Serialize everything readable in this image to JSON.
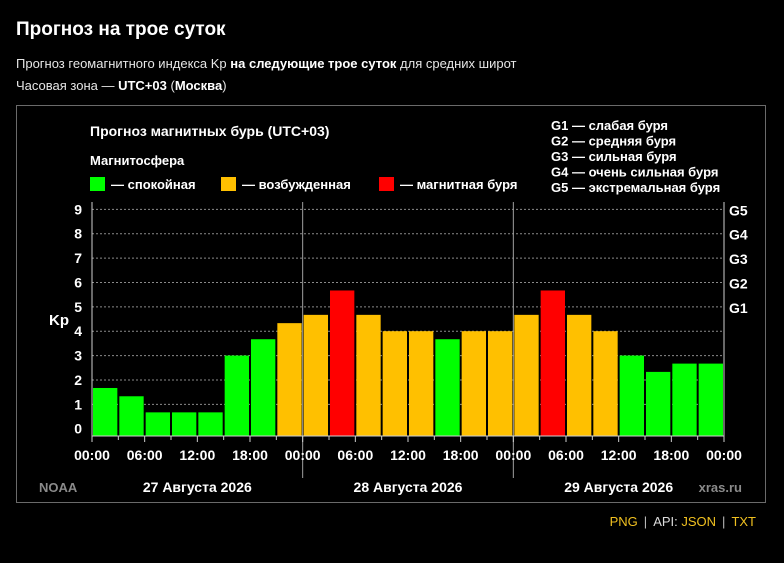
{
  "page": {
    "title": "Прогноз на трое суток",
    "subtitle_prefix": "Прогноз геомагнитного индекса Kp ",
    "subtitle_bold": "на следующие трое суток",
    "subtitle_suffix": " для средних широт",
    "timezone_prefix": "Часовая зона — ",
    "timezone_bold": "UTC+03",
    "timezone_open": " (",
    "timezone_city": "Москва",
    "timezone_close": ")"
  },
  "footer": {
    "png": "PNG",
    "sep1": "|",
    "api_prefix": "API: ",
    "json": "JSON",
    "sep2": "|",
    "txt": "TXT"
  },
  "chart_data": {
    "type": "bar",
    "title": "Прогноз магнитных бурь (UTC+03)",
    "legend_title": "Магнитосфера",
    "legend": [
      {
        "label": "— спокойная",
        "color": "#00ff00"
      },
      {
        "label": "— возбужденная",
        "color": "#ffc000"
      },
      {
        "label": "— магнитная буря",
        "color": "#ff0000"
      }
    ],
    "g_scale": [
      "G1 — слабая буря",
      "G2 — средняя буря",
      "G3 — сильная буря",
      "G4 — очень сильная буря",
      "G5 — экстремальная буря"
    ],
    "ylabel": "Kp",
    "ylim": [
      -0.3,
      9.3
    ],
    "yticks": [
      "0",
      "1",
      "2",
      "3",
      "4",
      "5",
      "6",
      "7",
      "8",
      "9"
    ],
    "right_ticks": [
      {
        "label": "G1",
        "value": 5
      },
      {
        "label": "G2",
        "value": 6
      },
      {
        "label": "G3",
        "value": 7
      },
      {
        "label": "G4",
        "value": 8
      },
      {
        "label": "G5",
        "value": 9
      }
    ],
    "x_tick_labels": [
      "00:00",
      "06:00",
      "12:00",
      "18:00",
      "00:00",
      "06:00",
      "12:00",
      "18:00",
      "00:00",
      "06:00",
      "12:00",
      "18:00",
      "00:00"
    ],
    "days": [
      "27 Августа 2026",
      "28 Августа 2026",
      "29 Августа 2026"
    ],
    "source_left": "NOAA",
    "source_right": "xras.ru",
    "values": [
      1.67,
      1.33,
      0.67,
      0.67,
      0.67,
      3.0,
      3.67,
      4.33,
      4.67,
      5.67,
      4.67,
      4.0,
      4.0,
      3.67,
      4.0,
      4.0,
      4.67,
      5.67,
      4.67,
      4.0,
      3.0,
      2.33,
      2.67,
      2.67
    ],
    "levels": [
      "quiet",
      "quiet",
      "quiet",
      "quiet",
      "quiet",
      "quiet",
      "quiet",
      "active",
      "active",
      "storm",
      "active",
      "active",
      "active",
      "quiet",
      "active",
      "active",
      "active",
      "storm",
      "active",
      "active",
      "quiet",
      "quiet",
      "quiet",
      "quiet"
    ],
    "colors": {
      "quiet": "#00ff00",
      "active": "#ffc000",
      "storm": "#ff0000"
    },
    "grid": true
  }
}
